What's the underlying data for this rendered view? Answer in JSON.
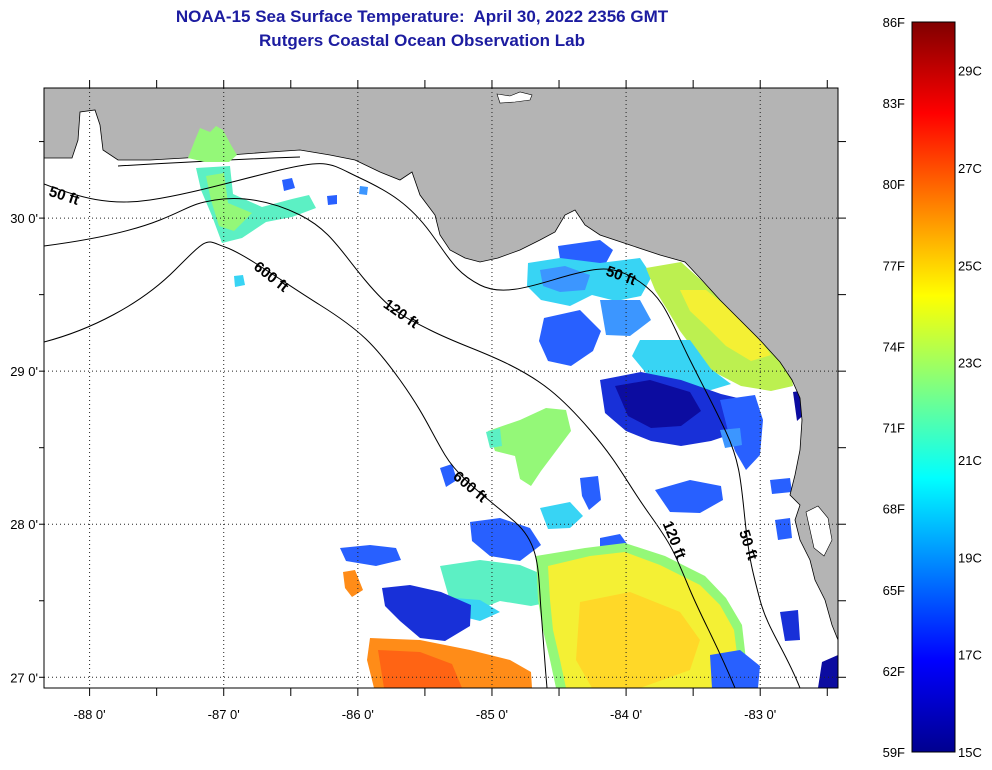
{
  "title": {
    "line1": "NOAA-15 Sea Surface Temperature:  April 30, 2022 2356 GMT",
    "line2": "Rutgers Coastal Ocean Observation Lab",
    "color": "#1c1ca0"
  },
  "map": {
    "extent_deg": {
      "lon": [
        -88.34,
        -82.42
      ],
      "lat": [
        26.93,
        30.85
      ]
    },
    "land_color": "#b4b4b4",
    "ocean_color": "#ffffff",
    "lat_ticks": [
      {
        "value": 30,
        "label": "30 0'"
      },
      {
        "value": 29,
        "label": "29 0'"
      },
      {
        "value": 28,
        "label": "28 0'"
      },
      {
        "value": 27,
        "label": "27 0'"
      }
    ],
    "lon_ticks": [
      {
        "value": -88,
        "label": "-88 0'"
      },
      {
        "value": -87,
        "label": "-87 0'"
      },
      {
        "value": -86,
        "label": "-86 0'"
      },
      {
        "value": -85,
        "label": "-85 0'"
      },
      {
        "value": -84,
        "label": "-84 0'"
      },
      {
        "value": -83,
        "label": "-83 0'"
      }
    ],
    "contour_labels": {
      "west_50": "50 ft",
      "west_600": "600 ft",
      "west_120": "120 ft",
      "east_50": "50 ft",
      "south_600": "600 ft",
      "south_120": "120 ft",
      "south_50": "50 ft"
    }
  },
  "colorbar": {
    "range_f": [
      59,
      86
    ],
    "colors": [
      "#00008f",
      "#0000ff",
      "#0080ff",
      "#00ffff",
      "#80ff80",
      "#ffff00",
      "#ff8000",
      "#ff0000",
      "#800000"
    ],
    "f_labels": [
      {
        "value": 86,
        "label": "86F"
      },
      {
        "value": 83,
        "label": "83F"
      },
      {
        "value": 80,
        "label": "80F"
      },
      {
        "value": 77,
        "label": "77F"
      },
      {
        "value": 74,
        "label": "74F"
      },
      {
        "value": 71,
        "label": "71F"
      },
      {
        "value": 68,
        "label": "68F"
      },
      {
        "value": 65,
        "label": "65F"
      },
      {
        "value": 62,
        "label": "62F"
      },
      {
        "value": 59,
        "label": "59F"
      }
    ],
    "c_labels": [
      {
        "value": 29,
        "label": "29C"
      },
      {
        "value": 27,
        "label": "27C"
      },
      {
        "value": 25,
        "label": "25C"
      },
      {
        "value": 23,
        "label": "23C"
      },
      {
        "value": 21,
        "label": "21C"
      },
      {
        "value": 19,
        "label": "19C"
      },
      {
        "value": 17,
        "label": "17C"
      },
      {
        "value": 15,
        "label": "15C"
      }
    ]
  }
}
